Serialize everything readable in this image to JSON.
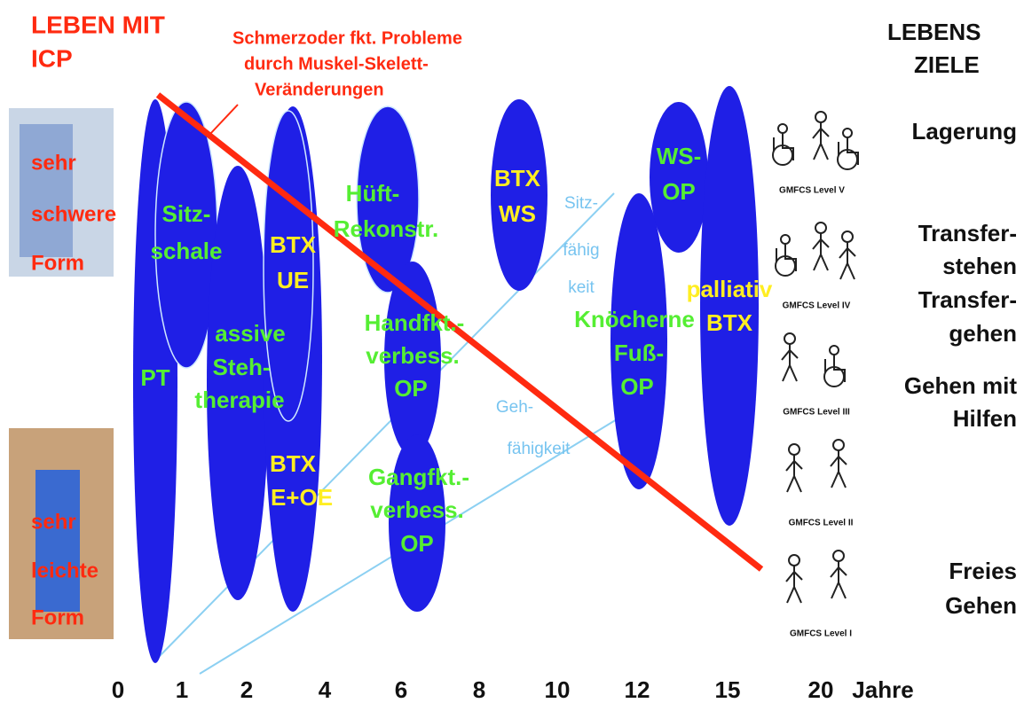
{
  "header": {
    "title": [
      "LEBEN  MIT",
      "ICP"
    ],
    "goals_title": [
      "LEBENS",
      "ZIELE"
    ]
  },
  "annotation": [
    "Schmerzoder fkt. Probleme",
    "durch Muskel-Skelett-",
    "Veränderungen"
  ],
  "severity": {
    "top": [
      "sehr",
      "schwere",
      "Form"
    ],
    "bottom": [
      "sehr",
      "leichte",
      "Form"
    ]
  },
  "treatments": [
    [
      "PT"
    ],
    [
      "Sitz-",
      "schale"
    ],
    [
      "assive",
      "Steh-",
      "therapie"
    ],
    [
      "BTX",
      "UE"
    ],
    [
      "BTX",
      "E+OE"
    ],
    [
      "Hüft-",
      "Rekonstr."
    ],
    [
      "Handfkt.-",
      "verbess.",
      "OP"
    ],
    [
      "Gangfkt.-",
      "verbess.",
      "OP"
    ],
    [
      "BTX",
      "WS"
    ],
    [
      "Knöcherne",
      "Fuß-",
      "OP"
    ],
    [
      "WS-",
      "OP"
    ],
    [
      "palliativ",
      "BTX"
    ]
  ],
  "abilities": [
    [
      "Sitz-",
      "fähig",
      "keit"
    ],
    [
      "Geh-",
      "fähigkeit"
    ]
  ],
  "goals": [
    [
      "Lagerung"
    ],
    [
      "Transfer-",
      "stehen"
    ],
    [
      "Transfer-",
      "gehen"
    ],
    [
      "Gehen mit",
      "Hilfen"
    ],
    [
      "Freies",
      "Gehen"
    ]
  ],
  "gmfcs": [
    "GMFCS Level V",
    "GMFCS Level IV",
    "GMFCS Level III",
    "GMFCS Level II",
    "GMFCS Level I"
  ],
  "axis": {
    "ticks": [
      "0",
      "1",
      "2",
      "4",
      "6",
      "8",
      "10",
      "12",
      "15",
      "20"
    ],
    "unit": "Jahre"
  }
}
